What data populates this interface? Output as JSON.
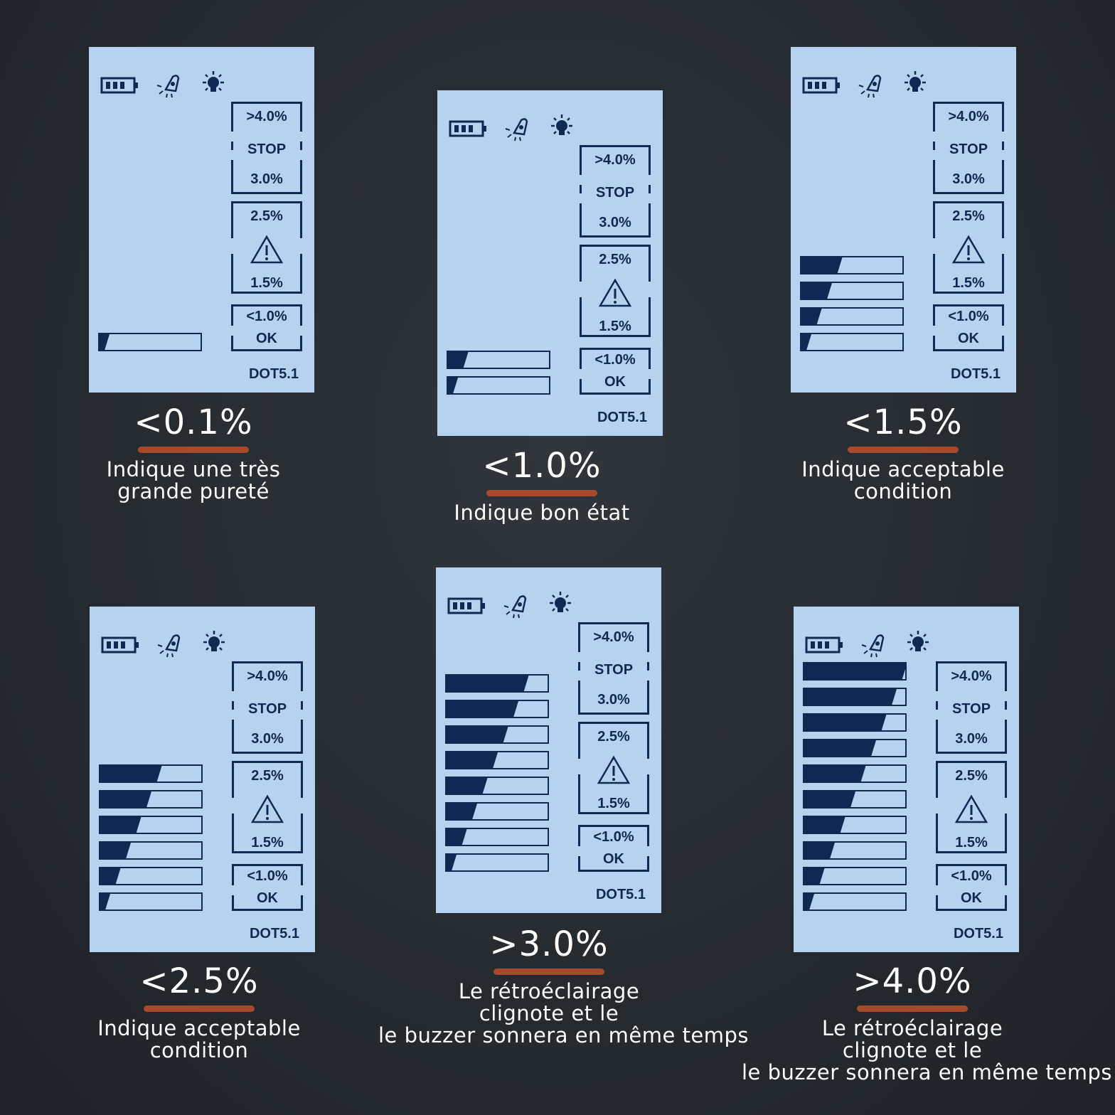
{
  "display": {
    "box1": {
      "top": ">4.0%",
      "mid": "STOP",
      "bottom": "3.0%"
    },
    "box2": {
      "top": "2.5%",
      "bottom": "1.5%"
    },
    "box3": {
      "top": "<1.0%",
      "bottom": "OK"
    },
    "model": "DOT5.1",
    "icons": [
      "battery-icon",
      "buzzer-icon",
      "backlight-icon",
      "warning-icon"
    ],
    "colors": {
      "lcd": "#b7d2f0",
      "segment": "#0d2a52",
      "underline": "#a6492d",
      "background": "#262b30"
    }
  },
  "panels": [
    {
      "value": "<0.1%",
      "bars_lit": 1,
      "desc": [
        "Indique une très",
        "grande pureté"
      ]
    },
    {
      "value": "<1.0%",
      "bars_lit": 2,
      "desc": [
        "Indique bon état"
      ]
    },
    {
      "value": "<1.5%",
      "bars_lit": 4,
      "desc": [
        "Indique acceptable",
        "condition"
      ]
    },
    {
      "value": "<2.5%",
      "bars_lit": 6,
      "desc": [
        "Indique acceptable",
        "condition"
      ]
    },
    {
      "value": ">3.0%",
      "bars_lit": 8,
      "desc": [
        "Le rétroéclairage",
        "clignote et le",
        "le buzzer sonnera en même temps"
      ]
    },
    {
      "value": ">4.0%",
      "bars_lit": 10,
      "desc": [
        "Le rétroéclairage",
        "clignote et le",
        "le buzzer sonnera en même temps"
      ]
    }
  ]
}
